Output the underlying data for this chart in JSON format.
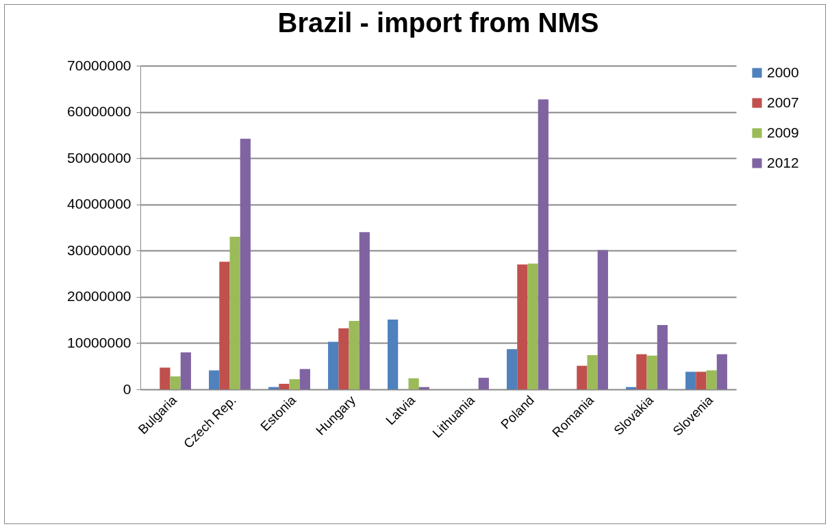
{
  "chart_data": {
    "type": "bar",
    "title": "Brazil - import from NMS",
    "categories": [
      "Bulgaria",
      "Czech Rep.",
      "Estonia",
      "Hungary",
      "Latvia",
      "Lithuania",
      "Poland",
      "Romania",
      "Slovakia",
      "Slovenia"
    ],
    "series": [
      {
        "name": "2000",
        "color": "#4f81bd",
        "values": [
          null,
          4100000,
          500000,
          10300000,
          15100000,
          0,
          8700000,
          null,
          500000,
          3800000
        ]
      },
      {
        "name": "2007",
        "color": "#c0504d",
        "values": [
          4700000,
          27600000,
          1200000,
          13200000,
          0,
          null,
          27000000,
          5100000,
          7600000,
          3800000
        ]
      },
      {
        "name": "2009",
        "color": "#9bbb59",
        "values": [
          2800000,
          33000000,
          2200000,
          14800000,
          2400000,
          0,
          27200000,
          7400000,
          7300000,
          4100000
        ]
      },
      {
        "name": "2012",
        "color": "#8064a2",
        "values": [
          8000000,
          54200000,
          4400000,
          34000000,
          500000,
          2500000,
          62700000,
          30100000,
          13900000,
          7600000
        ]
      }
    ],
    "ylim": [
      0,
      70000000
    ],
    "yticks": [
      0,
      10000000,
      20000000,
      30000000,
      40000000,
      50000000,
      60000000,
      70000000
    ],
    "grid": "y",
    "legend": "right"
  }
}
